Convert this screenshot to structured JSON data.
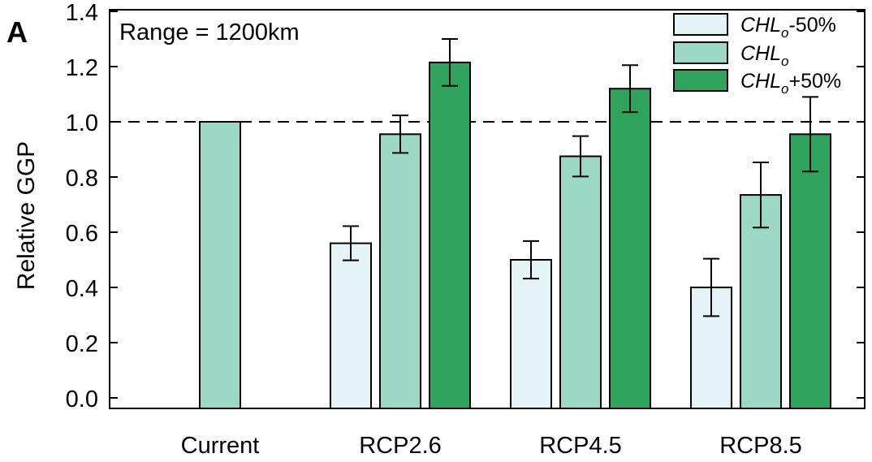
{
  "panel_label": "A",
  "chart_data": {
    "type": "bar",
    "ylabel": "Relative GGP",
    "ylim": [
      0.0,
      1.4
    ],
    "yticks": [
      "0.0",
      "0.2",
      "0.4",
      "0.6",
      "0.8",
      "1.0",
      "1.2",
      "1.4"
    ],
    "reference_line": 1.0,
    "annotation": "Range = 1200km",
    "categories": [
      "Current",
      "RCP2.6",
      "RCP4.5",
      "RCP8.5"
    ],
    "series": [
      {
        "legend_base": "CHL",
        "legend_sub": "o",
        "legend_suffix": "-50%",
        "color": "#e3f3f6",
        "values": [
          null,
          0.56,
          0.5,
          0.4
        ],
        "errors": [
          null,
          0.062,
          0.068,
          0.104
        ]
      },
      {
        "legend_base": "CHL",
        "legend_sub": "o",
        "legend_suffix": "",
        "color": "#9bd8c6",
        "values": [
          1.0,
          0.955,
          0.875,
          0.735
        ],
        "errors": [
          null,
          0.068,
          0.073,
          0.118
        ]
      },
      {
        "legend_base": "CHL",
        "legend_sub": "o",
        "legend_suffix": "+50%",
        "color": "#2ea45f",
        "values": [
          null,
          1.215,
          1.12,
          0.955
        ],
        "errors": [
          null,
          0.085,
          0.085,
          0.135
        ]
      }
    ]
  }
}
